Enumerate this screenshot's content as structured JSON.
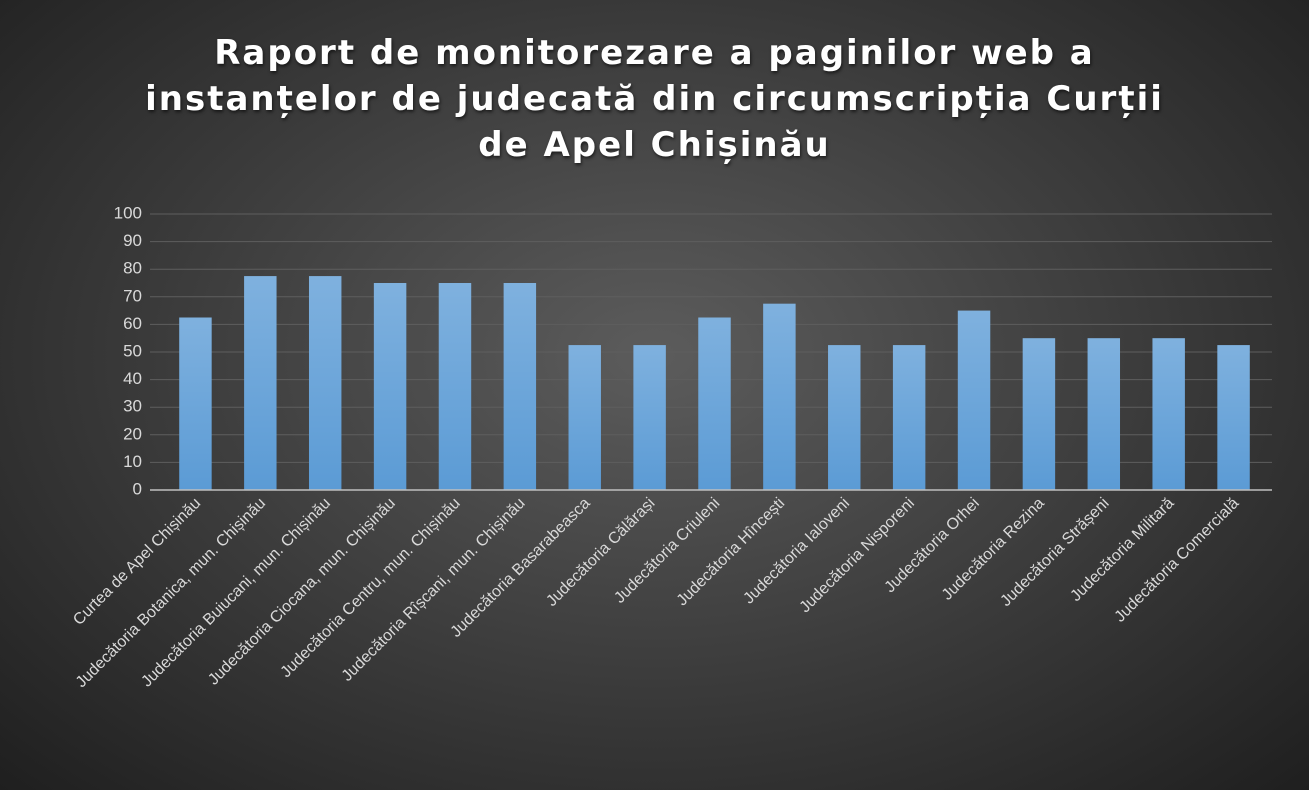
{
  "chart_data": {
    "type": "bar",
    "title": "Raport de monitorezare a paginilor web a\ninstanțelor de judecată din circumscripția Curții\nde Apel Chișinău",
    "categories": [
      "Curtea de Apel Chișinău",
      "Judecătoria Botanica, mun. Chișinău",
      "Judecătoria Buiucani, mun. Chișinău",
      "Judecătoria Ciocana, mun. Chișinău",
      "Judecătoria Centru, mun. Chișinău",
      "Judecătoria Rîșcani, mun. Chișinău",
      "Judecătoria Basarabeasca",
      "Judecătoria Călărași",
      "Judecătoria Criuleni",
      "Judecătoria Hîncești",
      "Judecătoria Ialoveni",
      "Judecătoria Nisporeni",
      "Judecătoria Orhei",
      "Judecătoria Rezina",
      "Judecătoria Strășeni",
      "Judecătoria Militară",
      "Judecătoria Comercială"
    ],
    "values": [
      62.5,
      77.5,
      77.5,
      75,
      75,
      75,
      52.5,
      52.5,
      62.5,
      67.5,
      52.5,
      52.5,
      65,
      55,
      55,
      55,
      52.5
    ],
    "color": "#5b9bd5",
    "ylim": [
      0,
      100
    ],
    "yticks": [
      0,
      10,
      20,
      30,
      40,
      50,
      60,
      70,
      80,
      90,
      100
    ],
    "grid": true
  }
}
